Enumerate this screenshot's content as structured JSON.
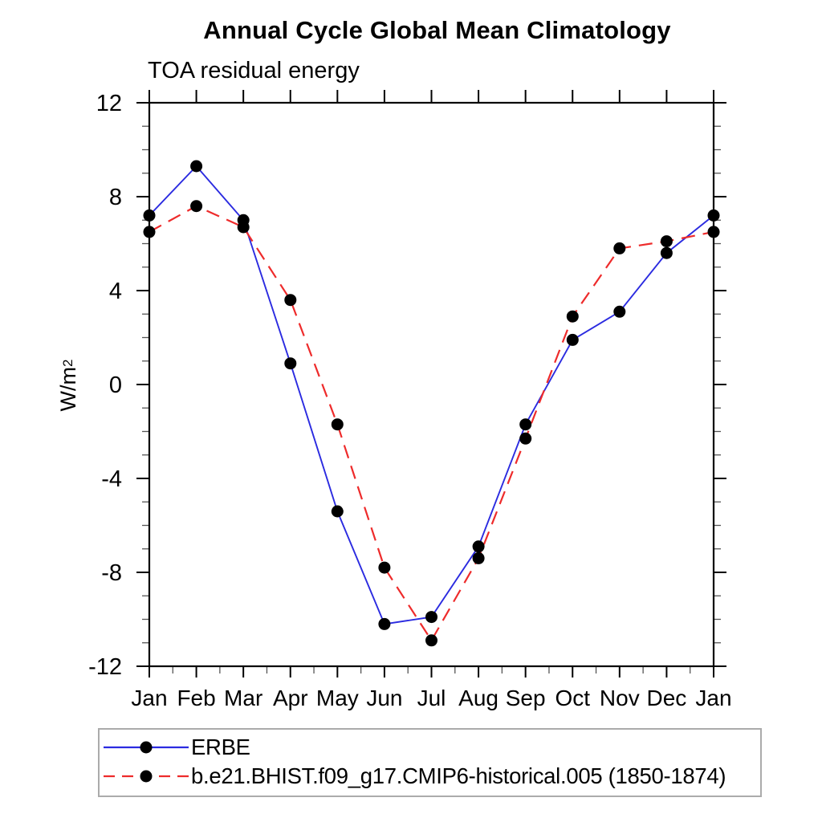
{
  "window": {
    "background": "#ffffff",
    "axis_color": "#000000",
    "legend_border_color": "#ababab"
  },
  "chart": {
    "title": "Annual Cycle Global Mean Climatology",
    "subtitle": "TOA residual energy",
    "ylabel_base": "W/m",
    "ylabel_sup": "2"
  },
  "chart_data": {
    "type": "line",
    "title": "Annual Cycle Global Mean Climatology",
    "subtitle": "TOA residual energy",
    "xlabel": "",
    "ylabel": "W/m^2",
    "categories": [
      "Jan",
      "Feb",
      "Mar",
      "Apr",
      "May",
      "Jun",
      "Jul",
      "Aug",
      "Sep",
      "Oct",
      "Nov",
      "Dec",
      "Jan"
    ],
    "ylim": [
      -12,
      12
    ],
    "ytick_values": [
      12,
      8,
      4,
      0,
      -4,
      -8,
      -12
    ],
    "ytick_labels": [
      "12",
      "8",
      "4",
      "0",
      "-4",
      "-8",
      "-12"
    ],
    "y_minor_step": 1,
    "x_minor_step": 0.5,
    "grid": false,
    "legend_position": "bottom-left",
    "marker": "filled-circle",
    "marker_color": "#000000",
    "series": [
      {
        "name": "ERBE",
        "color": "#2b2be0",
        "line_style": "solid",
        "values": [
          7.2,
          9.3,
          7.0,
          0.9,
          -5.4,
          -10.2,
          -9.9,
          -6.9,
          -1.7,
          1.9,
          3.1,
          5.6,
          7.2
        ]
      },
      {
        "name": "b.e21.BHIST.f09_g17.CMIP6-historical.005 (1850-1874)",
        "color": "#ee2b2b",
        "line_style": "dashed",
        "values": [
          6.5,
          7.6,
          6.7,
          3.6,
          -1.7,
          -7.8,
          -10.9,
          -7.4,
          -2.3,
          2.9,
          5.8,
          6.1,
          6.5
        ]
      }
    ]
  }
}
